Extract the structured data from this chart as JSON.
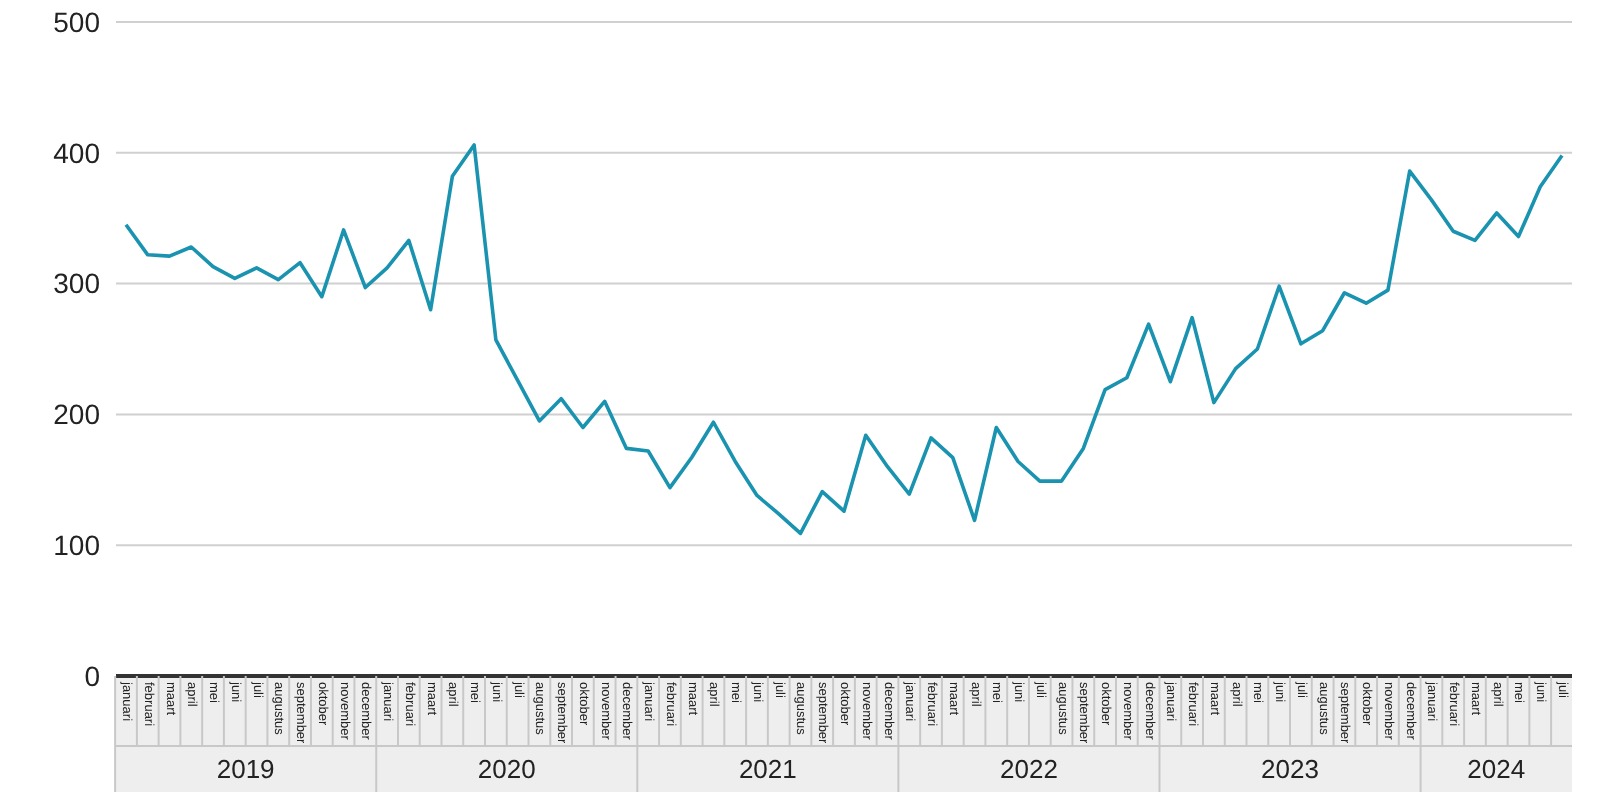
{
  "chart_data": {
    "type": "line",
    "categories": [
      "januari",
      "februari",
      "maart",
      "april",
      "mei",
      "juni",
      "juli",
      "augustus",
      "september",
      "oktober",
      "november",
      "december",
      "januari",
      "februari",
      "maart",
      "april",
      "mei",
      "juni",
      "juli",
      "augustus",
      "september",
      "oktober",
      "november",
      "december",
      "januari",
      "februari",
      "maart",
      "april",
      "mei",
      "juni",
      "juli",
      "augustus",
      "september",
      "oktober",
      "november",
      "december",
      "januari",
      "februari",
      "maart",
      "april",
      "mei",
      "juni",
      "juli",
      "augustus",
      "september",
      "oktober",
      "november",
      "december",
      "januari",
      "februari",
      "maart",
      "april",
      "mei",
      "juni",
      "juli",
      "augustus",
      "september",
      "oktober",
      "november",
      "december",
      "januari",
      "februari",
      "maart",
      "april",
      "mei",
      "juni",
      "juli"
    ],
    "series": [
      {
        "color": "#1a93b0",
        "values": [
          345,
          322,
          321,
          328,
          313,
          304,
          312,
          303,
          316,
          290,
          341,
          297,
          312,
          333,
          280,
          382,
          406,
          257,
          226,
          195,
          212,
          190,
          210,
          174,
          172,
          144,
          167,
          194,
          164,
          138,
          124,
          109,
          141,
          126,
          184,
          160,
          139,
          182,
          167,
          119,
          190,
          164,
          149,
          149,
          174,
          219,
          228,
          269,
          225,
          274,
          209,
          235,
          250,
          298,
          254,
          264,
          293,
          285,
          295,
          386,
          364,
          340,
          333,
          354,
          336,
          374,
          398
        ]
      }
    ],
    "ylim": [
      0,
      500
    ],
    "yticks": [
      0,
      100,
      200,
      300,
      400,
      500
    ],
    "grid": "y",
    "marker": "none",
    "line_style": "solid",
    "annotations": [
      "2019",
      "2020",
      "2021",
      "2022",
      "2023",
      "2024"
    ]
  }
}
